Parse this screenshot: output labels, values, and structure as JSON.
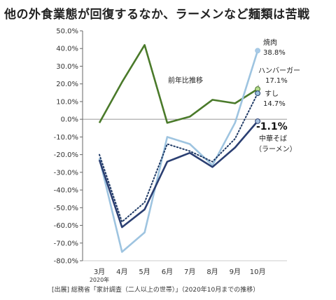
{
  "title": "他の外食業態が回復するなか、ラーメンなど麺類は苦戦",
  "source": "[出展] 総務省「家計調査（二人以上の世帯）」（2020年10月までの推移）",
  "chart_data": {
    "type": "line",
    "categories": [
      "3月",
      "4月",
      "5月",
      "6月",
      "7月",
      "8月",
      "9月",
      "10月"
    ],
    "year_label": "2020年",
    "ylim": [
      -80,
      50
    ],
    "yticks": [
      "50.0%",
      "40.0%",
      "30.0%",
      "20.0%",
      "10.0%",
      "0.0%",
      "-10.0%",
      "-20.0%",
      "-30.0%",
      "-40.0%",
      "-50.0%",
      "-60.0%",
      "-70.0%",
      "-80.0%"
    ],
    "series": [
      {
        "name": "前年比推移",
        "color": "#4a7a2a",
        "style": "solid",
        "values": [
          -2,
          21,
          42,
          -2,
          1.5,
          11,
          9,
          17.1
        ]
      },
      {
        "name": "焼肉",
        "color": "#9ec4e0",
        "style": "solid",
        "values": [
          -22,
          -75,
          -64,
          -10,
          -14,
          -26,
          -2,
          38.8
        ]
      },
      {
        "name": "すし",
        "color": "#1f3a66",
        "style": "dotted",
        "values": [
          -20,
          -58,
          -47,
          -14,
          -18,
          -24,
          -11,
          14.7
        ]
      },
      {
        "name": "中華そば（ラーメン）",
        "color": "#2b3f72",
        "style": "solid",
        "values": [
          -23,
          -61,
          -51,
          -24,
          -19,
          -27,
          -16,
          -1.1
        ]
      }
    ],
    "annotations": {
      "trend_label": "前年比推移",
      "yakiniku": {
        "name": "焼肉",
        "value": "38.8%"
      },
      "hamburger": {
        "name": "ハンバーガー",
        "value": "17.1%"
      },
      "sushi": {
        "name": "すし",
        "value": "14.7%"
      },
      "ramen": {
        "value": "-1.1%",
        "name_line1": "中華そば",
        "name_line2": "（ラーメン）"
      }
    },
    "grid": false
  }
}
